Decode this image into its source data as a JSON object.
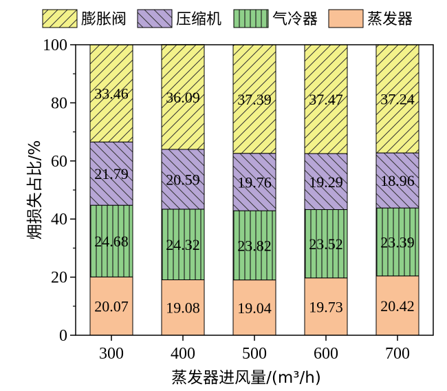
{
  "chart_data": {
    "type": "bar",
    "stacked": true,
    "categories": [
      "300",
      "400",
      "500",
      "600",
      "700"
    ],
    "series": [
      {
        "name": "蒸发器",
        "key": "evaporator",
        "values": [
          20.07,
          19.08,
          19.04,
          19.73,
          20.42
        ],
        "color": "#f9c196",
        "pattern": "none"
      },
      {
        "name": "气冷器",
        "key": "gas-cooler",
        "values": [
          24.68,
          24.32,
          23.82,
          23.52,
          23.39
        ],
        "color": "#8fd08a",
        "pattern": "vertical"
      },
      {
        "name": "压缩机",
        "key": "compressor",
        "values": [
          21.79,
          20.59,
          19.76,
          19.29,
          18.96
        ],
        "color": "#b7a6d6",
        "pattern": "backslash"
      },
      {
        "name": "膨胀阀",
        "key": "expansion-valve",
        "values": [
          33.46,
          36.09,
          37.39,
          37.47,
          37.24
        ],
        "color": "#f3f28a",
        "pattern": "slash"
      }
    ],
    "legend_order": [
      "expansion-valve",
      "compressor",
      "gas-cooler",
      "evaporator"
    ],
    "xlabel": "蒸发器进风量/(m³/h)",
    "ylabel": "㶲损失占比/%",
    "ylim": [
      0,
      100
    ],
    "yticks": [
      "0",
      "20",
      "40",
      "60",
      "80",
      "100"
    ],
    "grid": false,
    "legend_position": "top"
  }
}
